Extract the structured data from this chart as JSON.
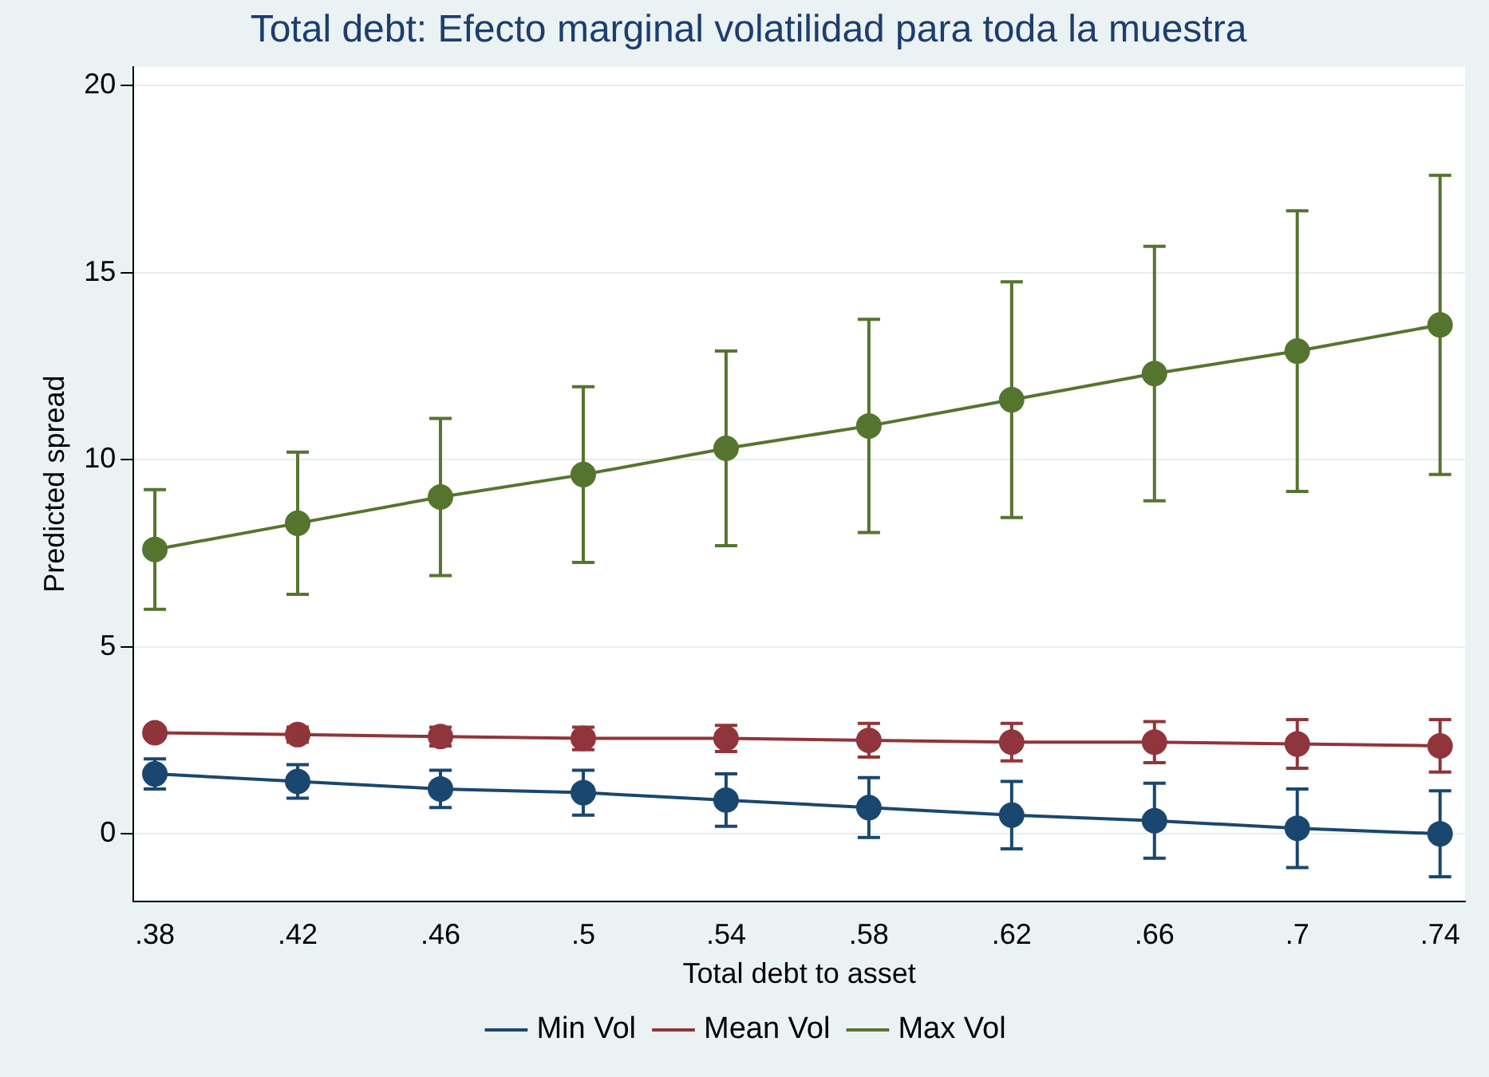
{
  "chart_data": {
    "type": "line",
    "title": "Total debt: Efecto marginal volatilidad para toda la muestra",
    "xlabel": "Total debt to asset",
    "ylabel": "Predicted spread",
    "x": [
      0.38,
      0.42,
      0.46,
      0.5,
      0.54,
      0.58,
      0.62,
      0.66,
      0.7,
      0.74
    ],
    "xlim": [
      0.374,
      0.747
    ],
    "xticks": [
      {
        "value": 0.38,
        "label": ".38"
      },
      {
        "value": 0.42,
        "label": ".42"
      },
      {
        "value": 0.46,
        "label": ".46"
      },
      {
        "value": 0.5,
        "label": ".5"
      },
      {
        "value": 0.54,
        "label": ".54"
      },
      {
        "value": 0.58,
        "label": ".58"
      },
      {
        "value": 0.62,
        "label": ".62"
      },
      {
        "value": 0.66,
        "label": ".66"
      },
      {
        "value": 0.7,
        "label": ".7"
      },
      {
        "value": 0.74,
        "label": ".74"
      }
    ],
    "ylim": [
      -1.8,
      20.5
    ],
    "yticks": [
      0,
      5,
      10,
      15,
      20
    ],
    "series": [
      {
        "name": "Min Vol",
        "color": "#1a476f",
        "values": [
          1.6,
          1.4,
          1.2,
          1.1,
          0.9,
          0.7,
          0.5,
          0.35,
          0.15,
          0.0
        ],
        "errors": [
          0.4,
          0.45,
          0.5,
          0.6,
          0.7,
          0.8,
          0.9,
          1.0,
          1.05,
          1.15
        ]
      },
      {
        "name": "Mean Vol",
        "color": "#90353b",
        "values": [
          2.7,
          2.65,
          2.6,
          2.55,
          2.55,
          2.5,
          2.45,
          2.45,
          2.4,
          2.35
        ],
        "errors": [
          0.1,
          0.2,
          0.25,
          0.3,
          0.35,
          0.45,
          0.5,
          0.55,
          0.65,
          0.7
        ]
      },
      {
        "name": "Max Vol",
        "color": "#55752f",
        "values": [
          7.6,
          8.3,
          9.0,
          9.6,
          10.3,
          10.9,
          11.6,
          12.3,
          12.9,
          13.6
        ],
        "errors": [
          1.6,
          1.9,
          2.1,
          2.35,
          2.6,
          2.85,
          3.15,
          3.4,
          3.75,
          4.0
        ]
      }
    ],
    "marker": "circle",
    "grid": "y",
    "legend": "bottom"
  }
}
